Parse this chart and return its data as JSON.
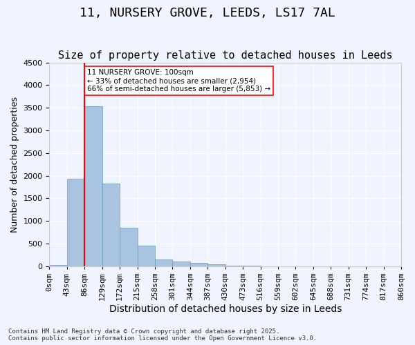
{
  "title": "11, NURSERY GROVE, LEEDS, LS17 7AL",
  "subtitle": "Size of property relative to detached houses in Leeds",
  "xlabel": "Distribution of detached houses by size in Leeds",
  "ylabel": "Number of detached properties",
  "bins": [
    "0sqm",
    "43sqm",
    "86sqm",
    "129sqm",
    "172sqm",
    "215sqm",
    "258sqm",
    "301sqm",
    "344sqm",
    "387sqm",
    "430sqm",
    "473sqm",
    "516sqm",
    "559sqm",
    "602sqm",
    "645sqm",
    "688sqm",
    "731sqm",
    "774sqm",
    "817sqm",
    "860sqm"
  ],
  "bar_values": [
    30,
    1940,
    3530,
    1820,
    855,
    460,
    155,
    100,
    70,
    50,
    20,
    10,
    5,
    3,
    2,
    1,
    1,
    0,
    0,
    0
  ],
  "bar_color": "#a8c4e0",
  "bar_edge_color": "#6699bb",
  "vline_x": 2,
  "vline_color": "red",
  "annotation_text": "11 NURSERY GROVE: 100sqm\n← 33% of detached houses are smaller (2,954)\n66% of semi-detached houses are larger (5,853) →",
  "annotation_box_color": "white",
  "annotation_box_edge": "red",
  "ylim": [
    0,
    4500
  ],
  "yticks": [
    0,
    500,
    1000,
    1500,
    2000,
    2500,
    3000,
    3500,
    4000,
    4500
  ],
  "bg_color": "#f0f4ff",
  "footnote": "Contains HM Land Registry data © Crown copyright and database right 2025.\nContains public sector information licensed under the Open Government Licence v3.0.",
  "title_fontsize": 13,
  "subtitle_fontsize": 11,
  "xlabel_fontsize": 10,
  "ylabel_fontsize": 9,
  "tick_fontsize": 8
}
